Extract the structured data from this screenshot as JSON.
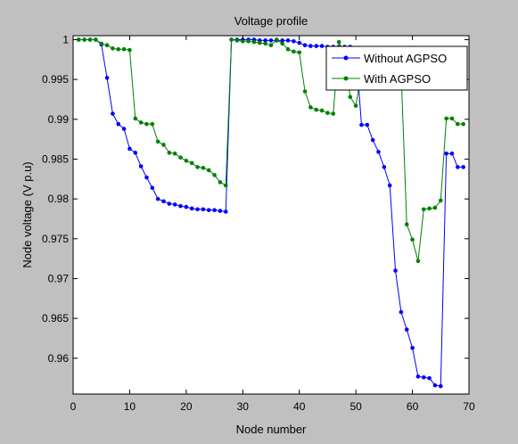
{
  "colors": {
    "figure_background": "#c0c0c0",
    "axes_background": "#ffffff",
    "without": "#0000ff",
    "with": "#008000"
  },
  "chart_data": {
    "type": "line",
    "title": "Voltage profile",
    "xlabel": "Node number",
    "ylabel": "Node voltage (V p.u)",
    "xlim": [
      0,
      70
    ],
    "ylim": [
      0.9555,
      1.0005
    ],
    "xticks": [
      0,
      10,
      20,
      30,
      40,
      50,
      60,
      70
    ],
    "yticks": [
      0.96,
      0.965,
      0.97,
      0.975,
      0.98,
      0.985,
      0.99,
      0.995,
      1.0
    ],
    "ytick_labels": [
      "0.96",
      "0.965",
      "0.97",
      "0.975",
      "0.98",
      "0.985",
      "0.99",
      "0.995",
      "1"
    ],
    "grid": false,
    "legend_position": "top-right",
    "series": [
      {
        "name": "Without AGPSO",
        "color": "#0000ff",
        "x": [
          1,
          2,
          3,
          4,
          5,
          6,
          7,
          8,
          9,
          10,
          11,
          12,
          13,
          14,
          15,
          16,
          17,
          18,
          19,
          20,
          21,
          22,
          23,
          24,
          25,
          26,
          27,
          28,
          29,
          30,
          31,
          32,
          33,
          34,
          35,
          36,
          37,
          38,
          39,
          40,
          41,
          42,
          43,
          44,
          45,
          46,
          47,
          48,
          49,
          50,
          51,
          52,
          53,
          54,
          55,
          56,
          57,
          58,
          59,
          60,
          61,
          62,
          63,
          64,
          65,
          66,
          67,
          68,
          69
        ],
        "values": [
          1.0,
          1.0,
          1.0,
          1.0,
          0.9994,
          0.9952,
          0.9907,
          0.9894,
          0.9888,
          0.9863,
          0.9858,
          0.9841,
          0.9827,
          0.9814,
          0.98,
          0.9797,
          0.9794,
          0.9793,
          0.9791,
          0.979,
          0.9788,
          0.9787,
          0.9787,
          0.9786,
          0.9786,
          0.9785,
          0.9784,
          1.0,
          1.0,
          1.0,
          1.0,
          1.0,
          0.9999,
          0.9999,
          0.9999,
          0.9999,
          0.9999,
          0.9999,
          0.9998,
          0.9996,
          0.9993,
          0.9992,
          0.9992,
          0.9992,
          0.9991,
          0.9991,
          0.9991,
          0.9991,
          0.9991,
          0.9987,
          0.9893,
          0.9893,
          0.9874,
          0.9859,
          0.984,
          0.9817,
          0.971,
          0.9658,
          0.9636,
          0.9613,
          0.9577,
          0.9576,
          0.9575,
          0.9566,
          0.9565,
          0.9857,
          0.9857,
          0.984,
          0.984
        ]
      },
      {
        "name": "With AGPSO",
        "color": "#008000",
        "x": [
          1,
          2,
          3,
          4,
          5,
          6,
          7,
          8,
          9,
          10,
          11,
          12,
          13,
          14,
          15,
          16,
          17,
          18,
          19,
          20,
          21,
          22,
          23,
          24,
          25,
          26,
          27,
          28,
          29,
          30,
          31,
          32,
          33,
          34,
          35,
          36,
          37,
          38,
          39,
          40,
          41,
          42,
          43,
          44,
          45,
          46,
          47,
          48,
          49,
          50,
          51,
          52,
          53,
          54,
          55,
          56,
          57,
          58,
          59,
          60,
          61,
          62,
          63,
          64,
          65,
          66,
          67,
          68,
          69
        ],
        "values": [
          1.0,
          1.0,
          1.0,
          1.0,
          0.9995,
          0.9993,
          0.9989,
          0.9988,
          0.9988,
          0.9987,
          0.9901,
          0.9896,
          0.9894,
          0.9894,
          0.9872,
          0.9868,
          0.9858,
          0.9857,
          0.9852,
          0.9848,
          0.9845,
          0.984,
          0.9839,
          0.9836,
          0.983,
          0.9821,
          0.9817,
          1.0,
          0.9999,
          0.9998,
          0.9998,
          0.9997,
          0.9996,
          0.9995,
          0.9993,
          1.0,
          0.9995,
          0.9988,
          0.9985,
          0.9984,
          0.9935,
          0.9915,
          0.9912,
          0.9911,
          0.9908,
          0.9907,
          0.9997,
          0.998,
          0.9928,
          0.9917,
          0.996,
          0.996,
          0.996,
          0.996,
          0.996,
          0.996,
          0.996,
          0.996,
          0.9768,
          0.9749,
          0.9722,
          0.9787,
          0.9788,
          0.9789,
          0.9798,
          0.9901,
          0.9901,
          0.9894,
          0.9894
        ]
      }
    ]
  }
}
